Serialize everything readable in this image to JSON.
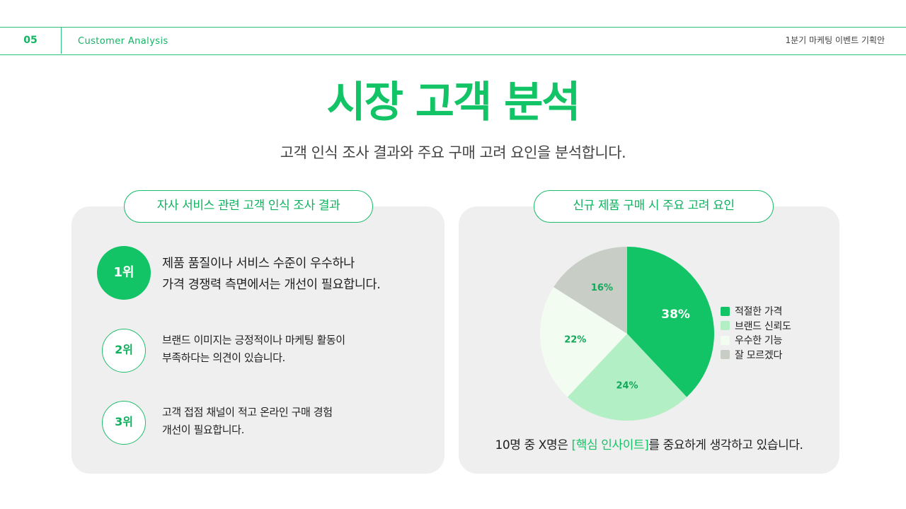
{
  "header": {
    "page_number": "05",
    "section": "Customer Analysis",
    "document_title": "1분기 마케팅 이벤트 기획안"
  },
  "main": {
    "title": "시장 고객 분석",
    "subtitle": "고객 인식 조사 결과와 주요 구매 고려 요인을 분석합니다."
  },
  "left_panel": {
    "heading": "자사 서비스 관련 고객 인식 조사 결과",
    "rankings": [
      {
        "rank": "1위",
        "lines": [
          "제품 품질이나 서비스 수준이 우수하나",
          "가격 경쟁력 측면에서는 개선이 필요합니다."
        ]
      },
      {
        "rank": "2위",
        "lines": [
          "브랜드 이미지는 긍정적이나 마케팅 활동이",
          "부족하다는 의견이 있습니다."
        ]
      },
      {
        "rank": "3위",
        "lines": [
          "고객 접점 채널이 적고 온라인 구매 경험",
          "개선이 필요합니다."
        ]
      }
    ]
  },
  "right_panel": {
    "heading": "신규 제품 구매 시 주요 고려 요인",
    "insight_prefix": "10명 중 X명은 ",
    "insight_highlight": "[핵심 인사이트]",
    "insight_suffix": "를 중요하게 생각하고 있습니다."
  },
  "chart_data": {
    "type": "pie",
    "categories": [
      "적절한 가격",
      "브랜드 신뢰도",
      "우수한 기능",
      "잘 모르겠다"
    ],
    "values": [
      38,
      24,
      22,
      16
    ],
    "labels": [
      "38%",
      "24%",
      "22%",
      "16%"
    ],
    "colors": [
      "#12c466",
      "#b2efc4",
      "#f3fcf0",
      "#c8cdc6"
    ],
    "label_colors": [
      "#ffffff",
      "#12a85a",
      "#12a85a",
      "#12a85a"
    ],
    "legend_position": "right"
  },
  "colors": {
    "accent": "#12c466",
    "panel_bg": "#efefef"
  }
}
